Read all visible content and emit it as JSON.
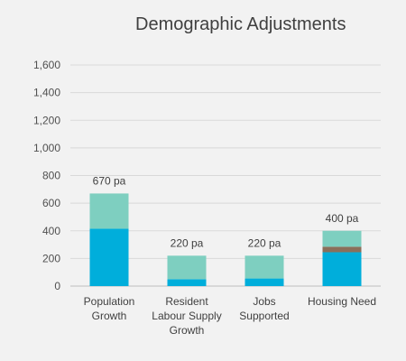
{
  "chart_data": {
    "type": "bar",
    "stacked": true,
    "title": "Demographic Adjustments",
    "categories": [
      [
        "Population",
        "Growth"
      ],
      [
        "Resident",
        "Labour Supply",
        "Growth"
      ],
      [
        "Jobs",
        "Supported"
      ],
      [
        "Housing Need"
      ]
    ],
    "y_ticks": [
      "0",
      "200",
      "400",
      "600",
      "800",
      "1,000",
      "1,200",
      "1,400",
      "1,600"
    ],
    "ylim": [
      0,
      1600
    ],
    "grid": true,
    "legend": "none",
    "colors": {
      "base": "#00aedb",
      "middle": "#8a6f5a",
      "top": "#7ecfc0",
      "grid": "#d9d9d9",
      "axis": "#bfbfbf"
    },
    "series": [
      {
        "values": [
          415,
          50,
          55,
          245
        ]
      },
      {
        "values": [
          0,
          0,
          0,
          40
        ]
      },
      {
        "values": [
          255,
          170,
          165,
          115
        ]
      }
    ],
    "totals": [
      670,
      220,
      220,
      400
    ],
    "data_labels": [
      "670 pa",
      "220 pa",
      "220 pa",
      "400 pa"
    ]
  }
}
